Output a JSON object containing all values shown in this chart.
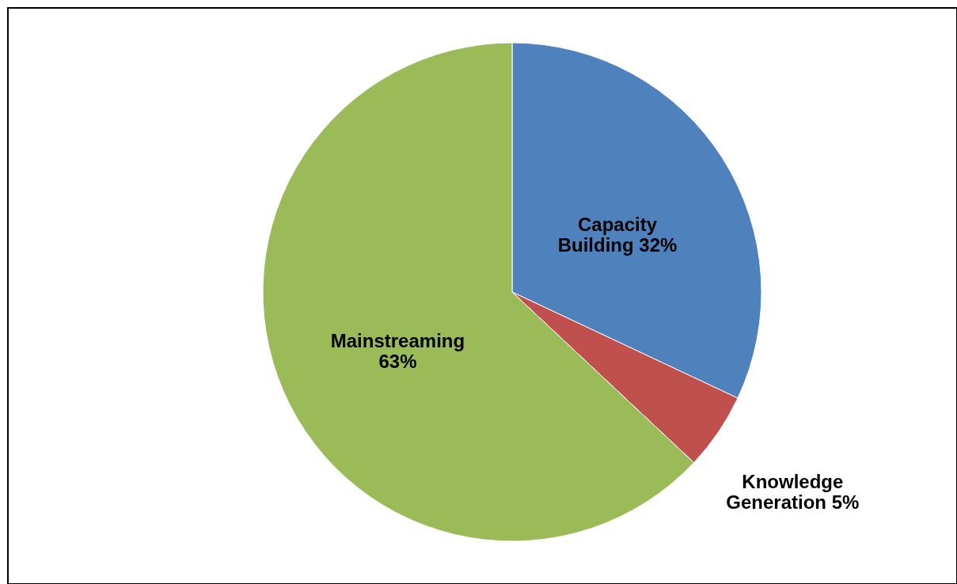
{
  "chart_data": {
    "type": "pie",
    "categories": [
      "Capacity Building",
      "Knowledge Generation",
      "Mainstreaming"
    ],
    "values": [
      32,
      5,
      63
    ],
    "colors": [
      "#4f81bd",
      "#c0504d",
      "#9bbb59"
    ],
    "value_labels": [
      "32%",
      "5%",
      "63%"
    ]
  }
}
